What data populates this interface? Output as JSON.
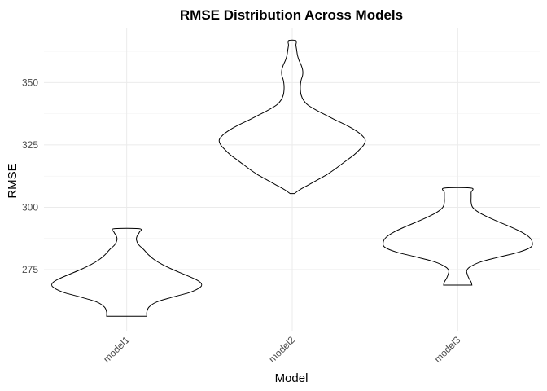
{
  "chart_data": {
    "type": "violin",
    "title": "RMSE Distribution Across Models",
    "xlabel": "Model",
    "ylabel": "RMSE",
    "categories": [
      "model1",
      "model2",
      "model3"
    ],
    "ylim": [
      250.5,
      372
    ],
    "y_ticks": [
      275,
      300,
      325,
      350
    ],
    "grid": true,
    "series": [
      {
        "category": "model1",
        "min": 256.3,
        "max": 291.4,
        "profile": [
          [
            256.3,
            0.27
          ],
          [
            258.0,
            0.27
          ],
          [
            260.0,
            0.3
          ],
          [
            262.0,
            0.4
          ],
          [
            264.0,
            0.62
          ],
          [
            266.0,
            0.86
          ],
          [
            268.0,
            0.99
          ],
          [
            269.5,
            1.0
          ],
          [
            271.0,
            0.93
          ],
          [
            273.0,
            0.78
          ],
          [
            275.0,
            0.62
          ],
          [
            277.0,
            0.48
          ],
          [
            279.0,
            0.37
          ],
          [
            281.0,
            0.29
          ],
          [
            283.0,
            0.23
          ],
          [
            285.0,
            0.16
          ],
          [
            287.0,
            0.13
          ],
          [
            288.5,
            0.14
          ],
          [
            290.0,
            0.17
          ],
          [
            291.4,
            0.17
          ]
        ]
      },
      {
        "category": "model2",
        "min": 305.5,
        "max": 366.8,
        "profile": [
          [
            305.5,
            0.03
          ],
          [
            307.0,
            0.1
          ],
          [
            309.0,
            0.22
          ],
          [
            311.0,
            0.34
          ],
          [
            313.0,
            0.46
          ],
          [
            315.0,
            0.56
          ],
          [
            317.0,
            0.65
          ],
          [
            319.0,
            0.74
          ],
          [
            321.0,
            0.83
          ],
          [
            323.0,
            0.9
          ],
          [
            325.0,
            0.96
          ],
          [
            327.0,
            0.98
          ],
          [
            329.0,
            0.93
          ],
          [
            331.0,
            0.84
          ],
          [
            333.0,
            0.72
          ],
          [
            335.0,
            0.58
          ],
          [
            337.0,
            0.45
          ],
          [
            339.0,
            0.32
          ],
          [
            341.0,
            0.21
          ],
          [
            343.0,
            0.15
          ],
          [
            345.0,
            0.12
          ],
          [
            347.0,
            0.11
          ],
          [
            349.0,
            0.11
          ],
          [
            351.0,
            0.12
          ],
          [
            353.0,
            0.14
          ],
          [
            355.0,
            0.14
          ],
          [
            357.0,
            0.12
          ],
          [
            359.0,
            0.09
          ],
          [
            361.0,
            0.07
          ],
          [
            363.0,
            0.06
          ],
          [
            365.0,
            0.05
          ],
          [
            366.8,
            0.05
          ]
        ]
      },
      {
        "category": "model3",
        "min": 268.8,
        "max": 307.7,
        "profile": [
          [
            268.8,
            0.19
          ],
          [
            270.0,
            0.18
          ],
          [
            271.5,
            0.15
          ],
          [
            273.0,
            0.13
          ],
          [
            274.5,
            0.12
          ],
          [
            276.0,
            0.16
          ],
          [
            278.0,
            0.3
          ],
          [
            280.0,
            0.55
          ],
          [
            282.0,
            0.82
          ],
          [
            284.0,
            0.98
          ],
          [
            286.0,
            1.0
          ],
          [
            288.0,
            0.96
          ],
          [
            290.0,
            0.86
          ],
          [
            292.0,
            0.72
          ],
          [
            294.0,
            0.56
          ],
          [
            296.0,
            0.41
          ],
          [
            298.0,
            0.28
          ],
          [
            300.0,
            0.2
          ],
          [
            302.0,
            0.18
          ],
          [
            304.0,
            0.18
          ],
          [
            306.0,
            0.18
          ],
          [
            307.7,
            0.18
          ]
        ]
      }
    ]
  }
}
